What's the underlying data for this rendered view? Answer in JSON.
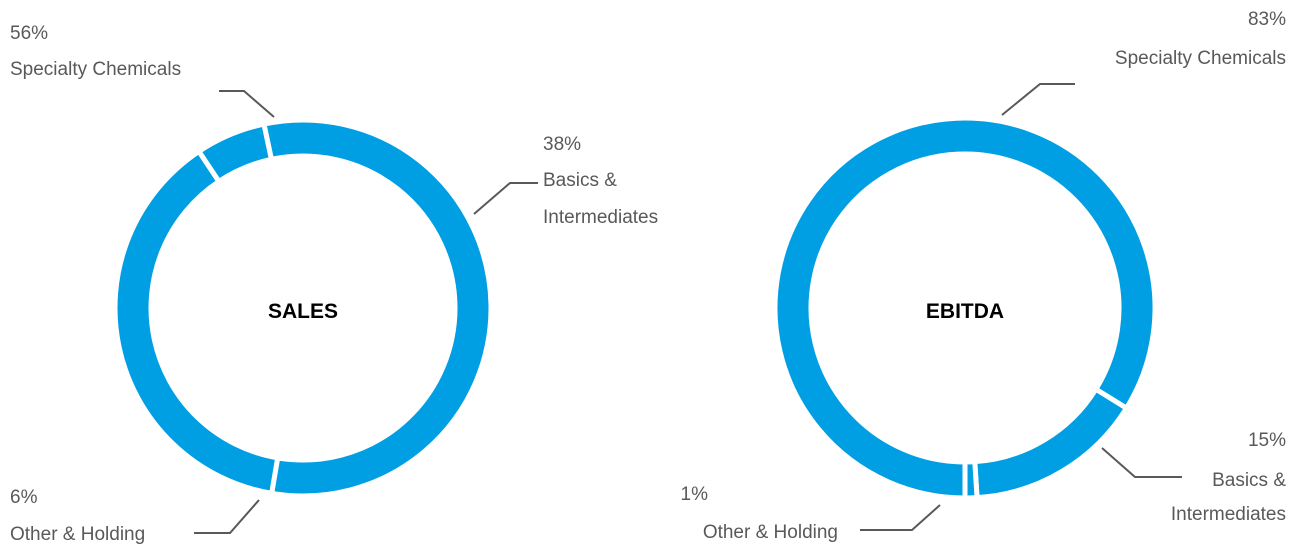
{
  "chart_data": [
    {
      "type": "pie",
      "donut": true,
      "title": "SALES",
      "categories": [
        "Specialty Chemicals",
        "Basics & Intermediates",
        "Other & Holding"
      ],
      "values": [
        56,
        38,
        6
      ],
      "value_labels": [
        "56%",
        "38%",
        "6%"
      ],
      "category_lines": [
        [
          "Specialty Chemicals"
        ],
        [
          "Basics &",
          "Intermediates"
        ],
        [
          "Other & Holding"
        ]
      ]
    },
    {
      "type": "pie",
      "donut": true,
      "title": "EBITDA",
      "categories": [
        "Specialty Chemicals",
        "Basics & Intermediates",
        "Other & Holding"
      ],
      "values": [
        83,
        15,
        1
      ],
      "value_labels": [
        "83%",
        "15%",
        "1%"
      ],
      "category_lines": [
        [
          "Specialty Chemicals"
        ],
        [
          "Basics &",
          "Intermediates"
        ],
        [
          "Other & Holding"
        ]
      ]
    }
  ],
  "colors": {
    "segment": "#009fe3",
    "separator": "#ffffff",
    "label": "#595959",
    "leader": "#595959"
  }
}
